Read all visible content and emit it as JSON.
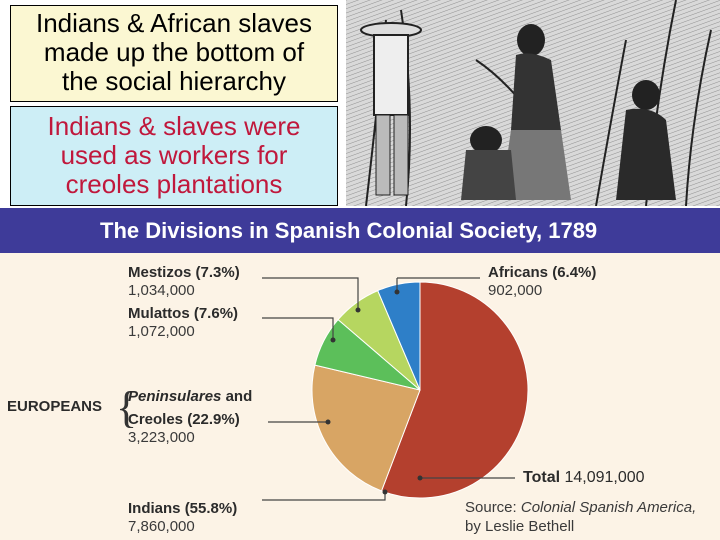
{
  "text_boxes": {
    "box1_lines": [
      "Indians & African slaves",
      "made up the bottom of",
      "the social hierarchy"
    ],
    "box2_lines": [
      "Indians & slaves were",
      "used as workers for",
      "creoles plantations"
    ]
  },
  "chart_data": {
    "type": "pie",
    "title": "The Divisions in Spanish Colonial Society, 1789",
    "total_label": "Total",
    "total_value": "14,091,000",
    "group_label": "EUROPEANS",
    "source_prefix": "Source:",
    "source_title": "Colonial Spanish America,",
    "source_author": "by Leslie Bethell",
    "slices": [
      {
        "name": "Indians",
        "percent_text": "(55.8%)",
        "count": "7,860,000",
        "value": 55.8,
        "color": "#b4402e"
      },
      {
        "name": "Peninsulares and Creoles",
        "percent_text": "(22.9%)",
        "count": "3,223,000",
        "value": 22.9,
        "color": "#d8a564"
      },
      {
        "name": "Mulattos",
        "percent_text": "(7.6%)",
        "count": "1,072,000",
        "value": 7.6,
        "color": "#5cbf5a"
      },
      {
        "name": "Mestizos",
        "percent_text": "(7.3%)",
        "count": "1,034,000",
        "value": 7.3,
        "color": "#b6d660"
      },
      {
        "name": "Africans",
        "percent_text": "(6.4%)",
        "count": "902,000",
        "value": 6.4,
        "color": "#2e7fc8"
      }
    ],
    "label_parts": {
      "peninsulares_line1": "Peninsulares",
      "peninsulares_and": "and",
      "creoles_line2": "Creoles"
    }
  }
}
